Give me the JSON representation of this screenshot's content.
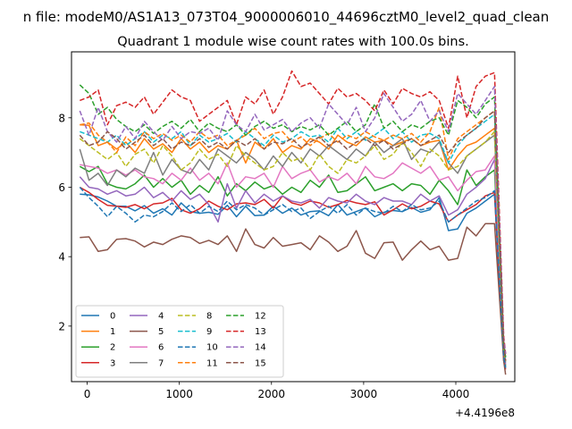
{
  "suptitle": "n file: modeM0/AS1A13_073T04_9000006010_44696cztM0_level2_quad_clean",
  "chart_data": {
    "type": "line",
    "title": "Quadrant 1 module wise count rates with 100.0s bins.",
    "xlabel": "",
    "ylabel": "",
    "x_offset_label": "+4.4196e8",
    "xlim": [
      -170,
      4640
    ],
    "ylim": [
      0.4,
      9.9
    ],
    "xticks": [
      0,
      1000,
      2000,
      3000,
      4000
    ],
    "xtick_labels": [
      "0",
      "1000",
      "2000",
      "3000",
      "4000"
    ],
    "yticks": [
      2,
      4,
      6,
      8
    ],
    "ytick_labels": [
      "2",
      "4",
      "6",
      "8"
    ],
    "grid": false,
    "legend_position": "lower-left",
    "legend_columns": 4,
    "x": [
      -80,
      20,
      120,
      220,
      320,
      420,
      520,
      620,
      720,
      820,
      920,
      1020,
      1120,
      1220,
      1320,
      1420,
      1520,
      1620,
      1720,
      1820,
      1920,
      2020,
      2120,
      2220,
      2320,
      2420,
      2520,
      2620,
      2720,
      2820,
      2920,
      3020,
      3120,
      3220,
      3320,
      3420,
      3520,
      3620,
      3720,
      3820,
      3920,
      4020,
      4120,
      4220,
      4320,
      4420,
      4520,
      4540
    ],
    "series": [
      {
        "name": "0",
        "color": "#1f77b4",
        "dash": "solid",
        "values": [
          5.8,
          5.78,
          5.72,
          5.6,
          5.45,
          5.45,
          5.32,
          5.47,
          5.25,
          5.38,
          5.2,
          5.55,
          5.3,
          5.25,
          5.28,
          5.22,
          5.48,
          5.15,
          5.45,
          5.18,
          5.2,
          5.45,
          5.25,
          5.4,
          5.2,
          5.3,
          5.32,
          5.18,
          5.5,
          5.2,
          5.3,
          5.4,
          5.15,
          5.28,
          5.33,
          5.3,
          5.42,
          5.28,
          5.35,
          5.7,
          4.75,
          4.8,
          5.25,
          5.4,
          5.6,
          5.8,
          1.1,
          0.8
        ]
      },
      {
        "name": "1",
        "color": "#ff7f0e",
        "dash": "solid",
        "values": [
          7.8,
          7.78,
          7.2,
          7.3,
          7.1,
          7.3,
          7.0,
          7.4,
          7.1,
          7.25,
          7.0,
          7.4,
          7.1,
          7.3,
          7.0,
          7.2,
          7.1,
          7.35,
          6.7,
          7.3,
          7.1,
          7.4,
          7.0,
          7.2,
          7.1,
          7.4,
          7.3,
          7.1,
          7.5,
          7.3,
          7.2,
          7.45,
          7.3,
          7.35,
          7.2,
          7.3,
          7.4,
          7.2,
          7.3,
          7.35,
          6.5,
          6.9,
          7.2,
          7.3,
          7.5,
          7.7,
          1.3,
          1.0
        ]
      },
      {
        "name": "2",
        "color": "#2ca02c",
        "dash": "solid",
        "values": [
          6.6,
          6.45,
          6.6,
          6.1,
          6.0,
          5.95,
          6.1,
          6.35,
          6.0,
          6.25,
          6.0,
          6.2,
          5.8,
          6.05,
          5.85,
          6.3,
          5.75,
          6.1,
          5.9,
          6.15,
          5.95,
          6.05,
          5.8,
          6.0,
          5.85,
          6.2,
          6.0,
          6.35,
          5.85,
          5.9,
          6.1,
          6.3,
          5.9,
          6.0,
          6.1,
          5.9,
          6.1,
          6.05,
          5.8,
          6.2,
          5.9,
          5.5,
          6.5,
          6.05,
          6.3,
          6.5,
          1.2,
          0.85
        ]
      },
      {
        "name": "3",
        "color": "#d62728",
        "dash": "solid",
        "values": [
          6.0,
          5.85,
          5.65,
          5.48,
          5.45,
          5.42,
          5.5,
          5.38,
          5.52,
          5.55,
          5.68,
          5.35,
          5.25,
          5.38,
          5.6,
          5.45,
          5.35,
          5.52,
          5.55,
          5.5,
          5.65,
          5.4,
          5.75,
          5.55,
          5.48,
          5.6,
          5.55,
          5.42,
          5.5,
          5.62,
          5.55,
          5.5,
          5.58,
          5.2,
          5.35,
          5.52,
          5.38,
          5.45,
          5.6,
          5.52,
          5.0,
          5.2,
          5.35,
          5.5,
          5.75,
          5.85,
          1.0,
          0.75
        ]
      },
      {
        "name": "4",
        "color": "#9467bd",
        "dash": "solid",
        "values": [
          6.3,
          6.0,
          5.95,
          5.8,
          5.9,
          5.75,
          5.8,
          6.0,
          5.7,
          5.85,
          5.6,
          5.9,
          5.65,
          5.8,
          5.5,
          5.0,
          6.1,
          5.4,
          5.9,
          5.55,
          5.8,
          5.6,
          5.75,
          5.6,
          5.55,
          5.65,
          5.4,
          5.7,
          5.6,
          5.55,
          5.8,
          5.6,
          5.5,
          5.7,
          5.6,
          5.6,
          5.5,
          5.8,
          5.6,
          5.75,
          5.2,
          5.35,
          5.8,
          6.0,
          6.25,
          6.8,
          1.2,
          0.9
        ]
      },
      {
        "name": "5",
        "color": "#8c564b",
        "dash": "solid",
        "values": [
          4.55,
          4.57,
          4.15,
          4.2,
          4.5,
          4.52,
          4.45,
          4.28,
          4.42,
          4.35,
          4.5,
          4.6,
          4.55,
          4.38,
          4.47,
          4.35,
          4.6,
          4.15,
          4.8,
          4.35,
          4.25,
          4.55,
          4.3,
          4.35,
          4.4,
          4.2,
          4.6,
          4.42,
          4.15,
          4.3,
          4.75,
          4.1,
          3.95,
          4.4,
          4.42,
          3.9,
          4.2,
          4.45,
          4.2,
          4.3,
          3.9,
          3.95,
          4.85,
          4.6,
          4.95,
          4.95,
          1.0,
          0.6
        ]
      },
      {
        "name": "6",
        "color": "#e377c2",
        "dash": "solid",
        "values": [
          6.65,
          6.6,
          6.55,
          6.4,
          6.5,
          6.35,
          6.5,
          6.3,
          6.25,
          6.1,
          6.4,
          6.2,
          6.55,
          6.2,
          6.4,
          6.1,
          6.7,
          6.0,
          6.3,
          6.25,
          6.4,
          6.0,
          6.6,
          6.25,
          6.4,
          6.5,
          6.15,
          6.3,
          6.2,
          6.4,
          6.1,
          6.6,
          6.3,
          6.25,
          6.4,
          6.7,
          6.55,
          6.4,
          6.6,
          6.2,
          6.3,
          5.9,
          6.2,
          6.45,
          6.5,
          6.9,
          1.4,
          1.0
        ]
      },
      {
        "name": "7",
        "color": "#7f7f7f",
        "dash": "solid",
        "values": [
          7.1,
          6.2,
          6.4,
          6.05,
          6.5,
          6.3,
          6.55,
          6.4,
          7.0,
          6.35,
          6.8,
          6.5,
          6.4,
          6.8,
          6.5,
          7.1,
          6.9,
          6.7,
          7.0,
          6.8,
          6.5,
          6.9,
          6.6,
          7.0,
          6.7,
          7.1,
          6.9,
          7.2,
          7.0,
          6.8,
          7.1,
          6.9,
          7.3,
          7.0,
          7.2,
          7.4,
          6.8,
          7.1,
          7.0,
          7.3,
          6.7,
          6.4,
          6.9,
          7.1,
          7.3,
          7.5,
          1.3,
          0.95
        ]
      },
      {
        "name": "8",
        "color": "#bcbd22",
        "dash": "dashed",
        "values": [
          7.4,
          7.2,
          7.0,
          6.8,
          7.0,
          6.6,
          6.95,
          7.1,
          6.7,
          7.2,
          6.9,
          6.5,
          6.7,
          7.1,
          6.8,
          6.95,
          6.6,
          7.2,
          6.9,
          6.7,
          6.5,
          6.6,
          7.0,
          6.75,
          6.85,
          6.5,
          6.95,
          6.6,
          6.4,
          6.8,
          6.7,
          6.9,
          7.2,
          6.8,
          6.95,
          7.3,
          7.0,
          6.6,
          7.1,
          6.9,
          6.5,
          6.6,
          6.9,
          7.1,
          7.3,
          7.6,
          1.3,
          1.0
        ]
      },
      {
        "name": "9",
        "color": "#17becf",
        "dash": "dashed",
        "values": [
          7.6,
          7.5,
          7.4,
          7.3,
          7.5,
          7.2,
          7.4,
          7.6,
          7.3,
          7.5,
          7.4,
          7.6,
          7.2,
          7.5,
          7.3,
          7.4,
          7.55,
          7.3,
          7.6,
          7.4,
          7.2,
          7.5,
          7.3,
          7.4,
          7.6,
          7.45,
          7.5,
          7.3,
          7.7,
          7.4,
          7.6,
          7.35,
          7.5,
          7.7,
          7.4,
          7.6,
          7.3,
          7.5,
          7.55,
          7.4,
          6.7,
          7.2,
          7.5,
          7.7,
          7.9,
          8.1,
          1.4,
          1.1
        ]
      },
      {
        "name": "10",
        "color": "#1f77b4",
        "dash": "dashed",
        "values": [
          6.0,
          5.7,
          5.45,
          5.15,
          5.45,
          5.25,
          5.0,
          5.2,
          5.15,
          5.3,
          5.55,
          5.3,
          5.5,
          5.25,
          5.45,
          5.3,
          5.6,
          5.35,
          5.5,
          5.4,
          5.2,
          5.35,
          5.5,
          5.3,
          5.4,
          5.1,
          5.3,
          5.45,
          5.25,
          5.5,
          5.2,
          5.4,
          5.3,
          5.25,
          5.45,
          5.3,
          5.5,
          5.35,
          5.4,
          5.6,
          5.0,
          5.2,
          5.4,
          5.6,
          5.7,
          5.9,
          1.1,
          0.8
        ]
      },
      {
        "name": "11",
        "color": "#ff7f0e",
        "dash": "dashed",
        "values": [
          7.8,
          7.85,
          7.5,
          7.3,
          7.0,
          7.45,
          7.2,
          7.6,
          7.4,
          7.55,
          7.35,
          7.5,
          7.3,
          7.6,
          7.4,
          7.5,
          7.2,
          7.35,
          7.5,
          7.7,
          7.4,
          7.55,
          7.6,
          7.3,
          7.45,
          7.2,
          7.4,
          7.55,
          7.3,
          7.5,
          7.4,
          7.6,
          7.45,
          7.35,
          7.5,
          7.4,
          7.55,
          7.3,
          7.6,
          8.3,
          6.8,
          7.4,
          7.6,
          7.8,
          8.0,
          8.2,
          1.5,
          1.1
        ]
      },
      {
        "name": "12",
        "color": "#2ca02c",
        "dash": "dashed",
        "values": [
          8.95,
          8.7,
          8.1,
          8.3,
          7.95,
          7.75,
          7.6,
          7.8,
          7.55,
          7.75,
          7.9,
          7.7,
          7.95,
          7.6,
          7.85,
          7.7,
          7.6,
          7.8,
          7.5,
          7.75,
          7.9,
          7.7,
          7.8,
          7.6,
          7.75,
          7.65,
          7.8,
          7.5,
          7.7,
          7.9,
          7.6,
          7.8,
          8.4,
          7.7,
          7.9,
          7.6,
          7.8,
          7.7,
          7.9,
          8.0,
          7.5,
          8.5,
          8.3,
          8.0,
          8.4,
          8.6,
          1.5,
          1.1
        ]
      },
      {
        "name": "13",
        "color": "#d62728",
        "dash": "dashed",
        "values": [
          8.5,
          8.6,
          8.8,
          7.8,
          8.35,
          8.45,
          8.3,
          8.6,
          8.1,
          8.45,
          8.8,
          8.6,
          8.5,
          7.9,
          8.1,
          8.3,
          8.5,
          7.8,
          8.6,
          8.4,
          8.8,
          8.1,
          8.6,
          9.35,
          8.9,
          9.0,
          8.7,
          8.4,
          8.85,
          8.6,
          8.7,
          8.5,
          8.2,
          8.8,
          8.4,
          8.85,
          8.7,
          8.6,
          8.75,
          8.5,
          7.7,
          9.2,
          8.0,
          8.9,
          9.2,
          9.3,
          1.7,
          1.2
        ]
      },
      {
        "name": "14",
        "color": "#9467bd",
        "dash": "dashed",
        "values": [
          8.2,
          7.5,
          8.3,
          7.6,
          7.3,
          7.75,
          7.4,
          7.9,
          7.6,
          7.35,
          7.75,
          7.4,
          7.6,
          7.55,
          7.7,
          7.35,
          8.2,
          7.8,
          7.6,
          8.1,
          7.65,
          7.8,
          7.95,
          7.6,
          7.85,
          8.0,
          7.7,
          8.4,
          8.1,
          7.8,
          8.3,
          7.6,
          8.0,
          8.7,
          8.3,
          7.9,
          8.1,
          8.5,
          7.9,
          8.2,
          7.6,
          8.7,
          8.4,
          8.1,
          8.5,
          8.9,
          1.6,
          1.2
        ]
      },
      {
        "name": "15",
        "color": "#8c564b",
        "dash": "dashed",
        "values": [
          7.5,
          7.2,
          7.3,
          7.6,
          7.4,
          7.1,
          7.3,
          7.5,
          7.2,
          7.4,
          7.1,
          7.3,
          7.2,
          7.4,
          7.15,
          7.3,
          7.1,
          7.35,
          7.2,
          7.4,
          7.1,
          7.3,
          7.25,
          7.4,
          7.15,
          7.3,
          7.45,
          7.2,
          7.35,
          7.1,
          7.3,
          7.4,
          7.2,
          7.35,
          7.1,
          7.25,
          7.4,
          7.2,
          7.35,
          7.5,
          7.0,
          7.3,
          7.5,
          7.7,
          8.0,
          8.2,
          1.4,
          1.0
        ]
      }
    ]
  }
}
